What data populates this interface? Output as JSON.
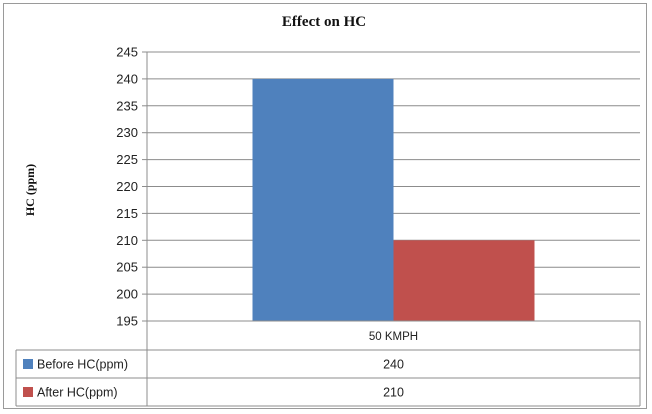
{
  "chart_data": {
    "type": "bar",
    "title": "Effect on HC",
    "xlabel": "",
    "ylabel": "HC (ppm)",
    "categories": [
      "50 KMPH"
    ],
    "series": [
      {
        "name": "Before HC(ppm)",
        "values": [
          240
        ],
        "color": "#4f81bd"
      },
      {
        "name": "After HC(ppm)",
        "values": [
          210
        ],
        "color": "#c0504d"
      }
    ],
    "ylim": [
      195,
      245
    ],
    "yticks": [
      195,
      200,
      205,
      210,
      215,
      220,
      225,
      230,
      235,
      240,
      245
    ],
    "grid": true,
    "legend": "data-table",
    "data_table": {
      "rows": [
        {
          "series": "Before HC(ppm)",
          "values": [
            "240"
          ]
        },
        {
          "series": "After HC(ppm)",
          "values": [
            "210"
          ]
        }
      ]
    }
  }
}
